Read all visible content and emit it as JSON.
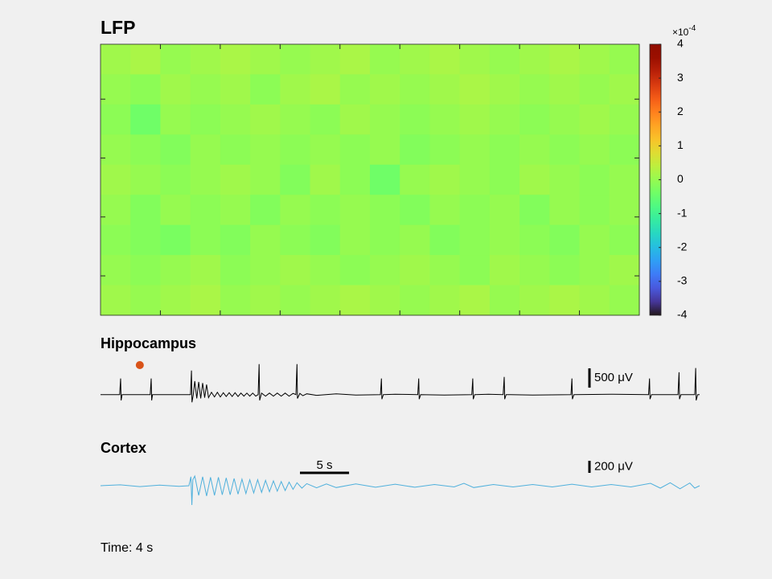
{
  "chart_data": [
    {
      "type": "heatmap",
      "title": "LFP",
      "colormap": "turbo",
      "clim": [
        -4,
        4
      ],
      "colorbar_ticks": [
        4,
        3,
        2,
        1,
        0,
        -1,
        -2,
        -3,
        -4
      ],
      "colorbar_multiplier": "×10",
      "colorbar_exponent": -4,
      "z": [
        [
          0.1,
          0.2,
          0.0,
          0.1,
          0.2,
          0.1,
          0.0,
          0.1,
          0.2,
          0.0,
          0.1,
          0.2,
          0.1,
          0.0,
          0.1,
          0.2,
          0.1,
          0.0
        ],
        [
          0.0,
          -0.1,
          0.1,
          0.0,
          0.1,
          -0.1,
          0.1,
          0.2,
          0.0,
          0.1,
          0.0,
          0.1,
          0.2,
          0.1,
          0.0,
          0.1,
          0.0,
          0.1
        ],
        [
          -0.1,
          -0.4,
          0.0,
          -0.1,
          0.0,
          0.1,
          0.0,
          -0.1,
          0.1,
          0.0,
          -0.1,
          0.0,
          0.1,
          0.0,
          -0.1,
          0.0,
          0.1,
          0.0
        ],
        [
          0.0,
          -0.1,
          -0.2,
          0.0,
          -0.1,
          0.0,
          -0.1,
          0.0,
          -0.1,
          0.0,
          -0.2,
          -0.1,
          0.0,
          -0.1,
          0.0,
          -0.1,
          0.0,
          -0.1
        ],
        [
          0.1,
          0.0,
          -0.1,
          0.0,
          0.1,
          0.0,
          -0.2,
          0.1,
          -0.1,
          -0.4,
          0.0,
          0.1,
          0.0,
          -0.1,
          0.1,
          0.0,
          -0.1,
          0.0
        ],
        [
          0.0,
          -0.2,
          0.0,
          -0.1,
          0.0,
          -0.2,
          0.0,
          -0.1,
          0.0,
          -0.1,
          -0.2,
          0.0,
          -0.1,
          0.0,
          -0.2,
          0.0,
          -0.1,
          0.0
        ],
        [
          -0.1,
          -0.2,
          -0.3,
          -0.1,
          -0.2,
          0.0,
          -0.1,
          -0.2,
          0.0,
          -0.1,
          0.0,
          -0.2,
          -0.1,
          0.0,
          -0.1,
          -0.2,
          0.0,
          -0.1
        ],
        [
          0.0,
          -0.1,
          0.0,
          0.1,
          -0.1,
          0.0,
          0.1,
          0.0,
          -0.1,
          0.0,
          0.1,
          0.0,
          -0.1,
          0.1,
          0.0,
          -0.1,
          0.0,
          0.1
        ],
        [
          0.1,
          0.0,
          0.1,
          0.2,
          0.0,
          0.1,
          0.0,
          0.1,
          0.2,
          0.1,
          0.0,
          0.1,
          0.2,
          0.0,
          0.1,
          0.2,
          0.1,
          0.0
        ]
      ]
    },
    {
      "type": "line",
      "title": "Hippocampus",
      "color": "#000000",
      "xlim": [
        0,
        61
      ],
      "ylim": [
        -800,
        1100
      ],
      "scalebar": {
        "value": 500,
        "label": "500 μV"
      },
      "x": [
        0,
        1.95,
        2.05,
        2.1,
        2.2,
        5.06,
        5.16,
        5.21,
        5.3,
        9.16,
        9.26,
        9.31,
        9.45,
        9.6,
        9.8,
        10.0,
        10.2,
        10.4,
        10.6,
        10.8,
        11.0,
        11.3,
        11.6,
        11.9,
        12.2,
        12.5,
        12.8,
        13.1,
        13.4,
        13.7,
        14.0,
        14.3,
        14.6,
        14.9,
        15.2,
        15.5,
        15.8,
        16.05,
        16.15,
        16.2,
        16.4,
        16.8,
        17.2,
        17.6,
        18.0,
        18.4,
        18.8,
        19.2,
        19.6,
        19.9,
        20.0,
        20.05,
        20.3,
        20.6,
        21.0,
        22.0,
        24.0,
        26.0,
        28.5,
        28.6,
        28.65,
        28.8,
        30.0,
        32.3,
        32.4,
        32.45,
        32.6,
        35.0,
        37.8,
        37.9,
        37.95,
        38.1,
        39.5,
        41.0,
        41.1,
        41.15,
        41.3,
        44.0,
        47.9,
        48.0,
        48.05,
        48.2,
        52.0,
        55.8,
        55.9,
        55.95,
        56.1,
        58.8,
        58.9,
        58.95,
        59.1,
        60.5,
        60.6,
        60.65,
        60.8,
        61.0
      ],
      "values": [
        0,
        0,
        420,
        -150,
        0,
        0,
        420,
        -150,
        0,
        0,
        625,
        -200,
        0,
        350,
        -100,
        330,
        -100,
        300,
        -80,
        260,
        -80,
        60,
        -60,
        60,
        -60,
        50,
        -50,
        50,
        -50,
        50,
        -50,
        40,
        -40,
        40,
        -40,
        40,
        -40,
        0,
        790,
        -150,
        40,
        -40,
        40,
        -40,
        40,
        -40,
        40,
        -40,
        30,
        0,
        790,
        -100,
        30,
        -30,
        20,
        -20,
        20,
        -10,
        0,
        420,
        -120,
        0,
        10,
        0,
        420,
        -120,
        0,
        -10,
        0,
        420,
        -120,
        0,
        10,
        0,
        460,
        -120,
        0,
        -10,
        0,
        420,
        -120,
        0,
        10,
        0,
        420,
        -120,
        0,
        0,
        580,
        -120,
        0,
        0,
        690,
        -150,
        0,
        0
      ],
      "cursor": 4
    },
    {
      "type": "line",
      "title": "Cortex",
      "color": "#4fb0dc",
      "xlim": [
        0,
        61
      ],
      "ylim": [
        -400,
        400
      ],
      "scalebar": {
        "value": 200,
        "label": "200 μV"
      },
      "time_scalebar": {
        "value": 5,
        "label": "5 s"
      },
      "x": [
        0,
        2,
        4,
        6,
        8,
        9.0,
        9.2,
        9.3,
        9.4,
        9.6,
        10.0,
        10.4,
        10.8,
        11.2,
        11.6,
        12.0,
        12.4,
        12.8,
        13.2,
        13.6,
        14.0,
        14.4,
        14.8,
        15.2,
        15.6,
        16.0,
        16.4,
        16.8,
        17.2,
        17.6,
        18.0,
        18.4,
        18.8,
        19.2,
        19.6,
        20.0,
        20.5,
        21,
        22,
        23,
        24,
        26,
        28,
        30,
        32,
        34,
        36,
        37,
        38,
        40,
        42,
        44,
        46,
        48,
        50,
        52,
        54,
        56,
        57,
        58,
        59,
        60,
        60.5,
        61
      ],
      "values": [
        0,
        15,
        -15,
        10,
        -10,
        0,
        150,
        -320,
        100,
        160,
        -160,
        150,
        -170,
        140,
        -160,
        140,
        -150,
        130,
        -150,
        120,
        -140,
        110,
        -130,
        100,
        -120,
        100,
        -110,
        90,
        -100,
        80,
        -90,
        70,
        -80,
        60,
        -60,
        50,
        -40,
        35,
        -35,
        30,
        -30,
        30,
        -25,
        25,
        -25,
        20,
        -20,
        40,
        -30,
        20,
        -20,
        20,
        -20,
        25,
        -20,
        20,
        -20,
        40,
        -40,
        50,
        -50,
        45,
        -40,
        0
      ]
    }
  ],
  "footer": {
    "time": {
      "value": 4,
      "label": "Time: 4 s"
    }
  }
}
